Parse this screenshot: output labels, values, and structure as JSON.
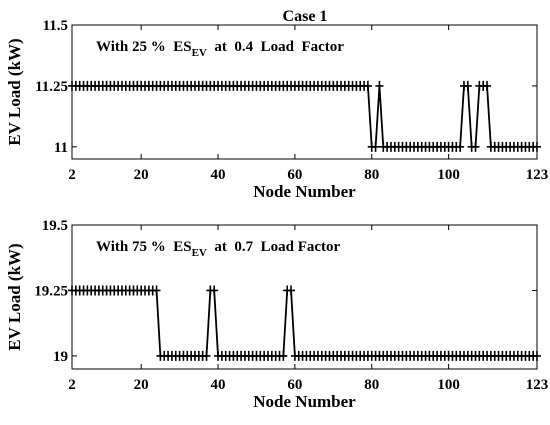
{
  "figure_title": "Case 1",
  "chart_data": [
    {
      "type": "line",
      "xlabel": "Node Number",
      "ylabel": "EV Load (kW)",
      "annotation": {
        "prefix": "With 25 %  ES",
        "subscript": "EV",
        "suffix": "  at  0.4  Load  Factor"
      },
      "xlim": [
        2,
        123
      ],
      "ylim": [
        10.95,
        11.5
      ],
      "xticks": [
        2,
        20,
        40,
        60,
        80,
        100,
        123
      ],
      "yticks": [
        11,
        11.25,
        11.5
      ],
      "ytick_labels": [
        "11",
        "11.25",
        "11.5"
      ],
      "grid": false,
      "marker": "+",
      "line_color": "#000000",
      "series": [
        {
          "x": [
            2,
            3,
            4,
            5,
            6,
            7,
            8,
            9,
            10,
            11,
            12,
            13,
            14,
            15,
            16,
            17,
            18,
            19,
            20,
            21,
            22,
            23,
            24,
            25,
            26,
            27,
            28,
            29,
            30,
            31,
            32,
            33,
            34,
            35,
            36,
            37,
            38,
            39,
            40,
            41,
            42,
            43,
            44,
            45,
            46,
            47,
            48,
            49,
            50,
            51,
            52,
            53,
            54,
            55,
            56,
            57,
            58,
            59,
            60,
            61,
            62,
            63,
            64,
            65,
            66,
            67,
            68,
            69,
            70,
            71,
            72,
            73,
            74,
            75,
            76,
            77,
            78,
            79,
            80,
            81,
            82,
            83,
            84,
            85,
            86,
            87,
            88,
            89,
            90,
            91,
            92,
            93,
            94,
            95,
            96,
            97,
            98,
            99,
            100,
            101,
            102,
            103,
            104,
            105,
            106,
            107,
            108,
            109,
            110,
            111,
            112,
            113,
            114,
            115,
            116,
            117,
            118,
            119,
            120,
            121,
            122,
            123
          ],
          "y": [
            11.25,
            11.25,
            11.25,
            11.25,
            11.25,
            11.25,
            11.25,
            11.25,
            11.25,
            11.25,
            11.25,
            11.25,
            11.25,
            11.25,
            11.25,
            11.25,
            11.25,
            11.25,
            11.25,
            11.25,
            11.25,
            11.25,
            11.25,
            11.25,
            11.25,
            11.25,
            11.25,
            11.25,
            11.25,
            11.25,
            11.25,
            11.25,
            11.25,
            11.25,
            11.25,
            11.25,
            11.25,
            11.25,
            11.25,
            11.25,
            11.25,
            11.25,
            11.25,
            11.25,
            11.25,
            11.25,
            11.25,
            11.25,
            11.25,
            11.25,
            11.25,
            11.25,
            11.25,
            11.25,
            11.25,
            11.25,
            11.25,
            11.25,
            11.25,
            11.25,
            11.25,
            11.25,
            11.25,
            11.25,
            11.25,
            11.25,
            11.25,
            11.25,
            11.25,
            11.25,
            11.25,
            11.25,
            11.25,
            11.25,
            11.25,
            11.25,
            11.25,
            11.25,
            11,
            11,
            11.25,
            11,
            11,
            11,
            11,
            11,
            11,
            11,
            11,
            11,
            11,
            11,
            11,
            11,
            11,
            11,
            11,
            11,
            11,
            11,
            11,
            11,
            11.25,
            11.25,
            11,
            11,
            11.25,
            11.25,
            11.25,
            11,
            11,
            11,
            11,
            11,
            11,
            11,
            11,
            11,
            11,
            11,
            11,
            11
          ]
        }
      ]
    },
    {
      "type": "line",
      "xlabel": "Node Number",
      "ylabel": "EV Load (kW)",
      "annotation": {
        "prefix": "With 75 %  ES",
        "subscript": "EV",
        "suffix": "  at  0.7  Load Factor"
      },
      "xlim": [
        2,
        123
      ],
      "ylim": [
        18.95,
        19.5
      ],
      "xticks": [
        2,
        20,
        40,
        60,
        80,
        100,
        123
      ],
      "yticks": [
        19,
        19.25,
        19.5
      ],
      "ytick_labels": [
        "19",
        "19.25",
        "19.5"
      ],
      "grid": false,
      "marker": "+",
      "line_color": "#000000",
      "series": [
        {
          "x": [
            2,
            3,
            4,
            5,
            6,
            7,
            8,
            9,
            10,
            11,
            12,
            13,
            14,
            15,
            16,
            17,
            18,
            19,
            20,
            21,
            22,
            23,
            24,
            25,
            26,
            27,
            28,
            29,
            30,
            31,
            32,
            33,
            34,
            35,
            36,
            37,
            38,
            39,
            40,
            41,
            42,
            43,
            44,
            45,
            46,
            47,
            48,
            49,
            50,
            51,
            52,
            53,
            54,
            55,
            56,
            57,
            58,
            59,
            60,
            61,
            62,
            63,
            64,
            65,
            66,
            67,
            68,
            69,
            70,
            71,
            72,
            73,
            74,
            75,
            76,
            77,
            78,
            79,
            80,
            81,
            82,
            83,
            84,
            85,
            86,
            87,
            88,
            89,
            90,
            91,
            92,
            93,
            94,
            95,
            96,
            97,
            98,
            99,
            100,
            101,
            102,
            103,
            104,
            105,
            106,
            107,
            108,
            109,
            110,
            111,
            112,
            113,
            114,
            115,
            116,
            117,
            118,
            119,
            120,
            121,
            122,
            123
          ],
          "y": [
            19.25,
            19.25,
            19.25,
            19.25,
            19.25,
            19.25,
            19.25,
            19.25,
            19.25,
            19.25,
            19.25,
            19.25,
            19.25,
            19.25,
            19.25,
            19.25,
            19.25,
            19.25,
            19.25,
            19.25,
            19.25,
            19.25,
            19.25,
            19,
            19,
            19,
            19,
            19,
            19,
            19,
            19,
            19,
            19,
            19,
            19,
            19,
            19.25,
            19.25,
            19,
            19,
            19,
            19,
            19,
            19,
            19,
            19,
            19,
            19,
            19,
            19,
            19,
            19,
            19,
            19,
            19,
            19,
            19.25,
            19.25,
            19,
            19,
            19,
            19,
            19,
            19,
            19,
            19,
            19,
            19,
            19,
            19,
            19,
            19,
            19,
            19,
            19,
            19,
            19,
            19,
            19,
            19,
            19,
            19,
            19,
            19,
            19,
            19,
            19,
            19,
            19,
            19,
            19,
            19,
            19,
            19,
            19,
            19,
            19,
            19,
            19,
            19,
            19,
            19,
            19,
            19,
            19,
            19,
            19,
            19,
            19,
            19,
            19,
            19,
            19,
            19,
            19,
            19,
            19,
            19,
            19,
            19,
            19,
            19
          ]
        }
      ]
    }
  ]
}
